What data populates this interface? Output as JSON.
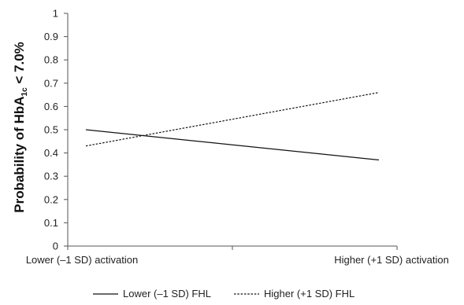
{
  "chart_data": {
    "type": "line",
    "title": "",
    "xlabel": "",
    "ylabel": {
      "prefix": "Probability of HbA",
      "subscript": "1c",
      "suffix": " < 7.0%"
    },
    "categories": [
      "Lower (–1 SD) activation",
      "Higher (+1 SD) activation"
    ],
    "ylim": [
      0,
      1
    ],
    "yticks": [
      "0",
      "0.1",
      "0.2",
      "0.3",
      "0.4",
      "0.5",
      "0.6",
      "0.7",
      "0.8",
      "0.9",
      "1"
    ],
    "grid": false,
    "legend_position": "bottom",
    "series": [
      {
        "name": "Lower (–1 SD) FHL",
        "values": [
          0.5,
          0.37
        ],
        "line_style": "solid",
        "color": "#111111"
      },
      {
        "name": "Higher (+1 SD) FHL",
        "values": [
          0.43,
          0.66
        ],
        "line_style": "dashed",
        "color": "#111111"
      }
    ]
  }
}
